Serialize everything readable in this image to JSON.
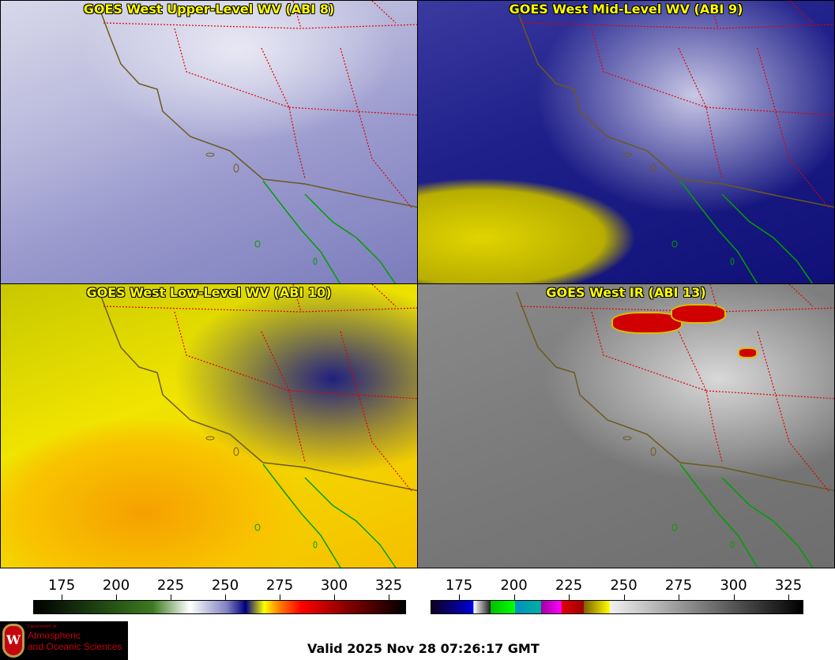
{
  "panels": [
    {
      "title": "GOES West Upper-Level WV (ABI 8)"
    },
    {
      "title": "GOES West Mid-Level WV (ABI 9)"
    },
    {
      "title": "GOES West Low-Level WV (ABI 10)"
    },
    {
      "title": "GOES West IR (ABI 13)"
    }
  ],
  "colorbars": [
    {
      "units_range": [
        162,
        333
      ],
      "ticks": [
        "175",
        "200",
        "225",
        "250",
        "275",
        "300",
        "325"
      ]
    },
    {
      "units_range": [
        162,
        333
      ],
      "ticks": [
        "175",
        "200",
        "225",
        "250",
        "275",
        "300",
        "325"
      ]
    }
  ],
  "logo": {
    "line1": "Department of",
    "line2": "Atmospheric",
    "line3": "and Oceanic Sciences",
    "crest": "W"
  },
  "valid_time": "Valid 2025 Nov 28 07:26:17 GMT",
  "colors": {
    "title": "#ffff00",
    "coast": "#6b5a1e",
    "state_border": "#e00000",
    "mexico_coast": "#00a000"
  }
}
